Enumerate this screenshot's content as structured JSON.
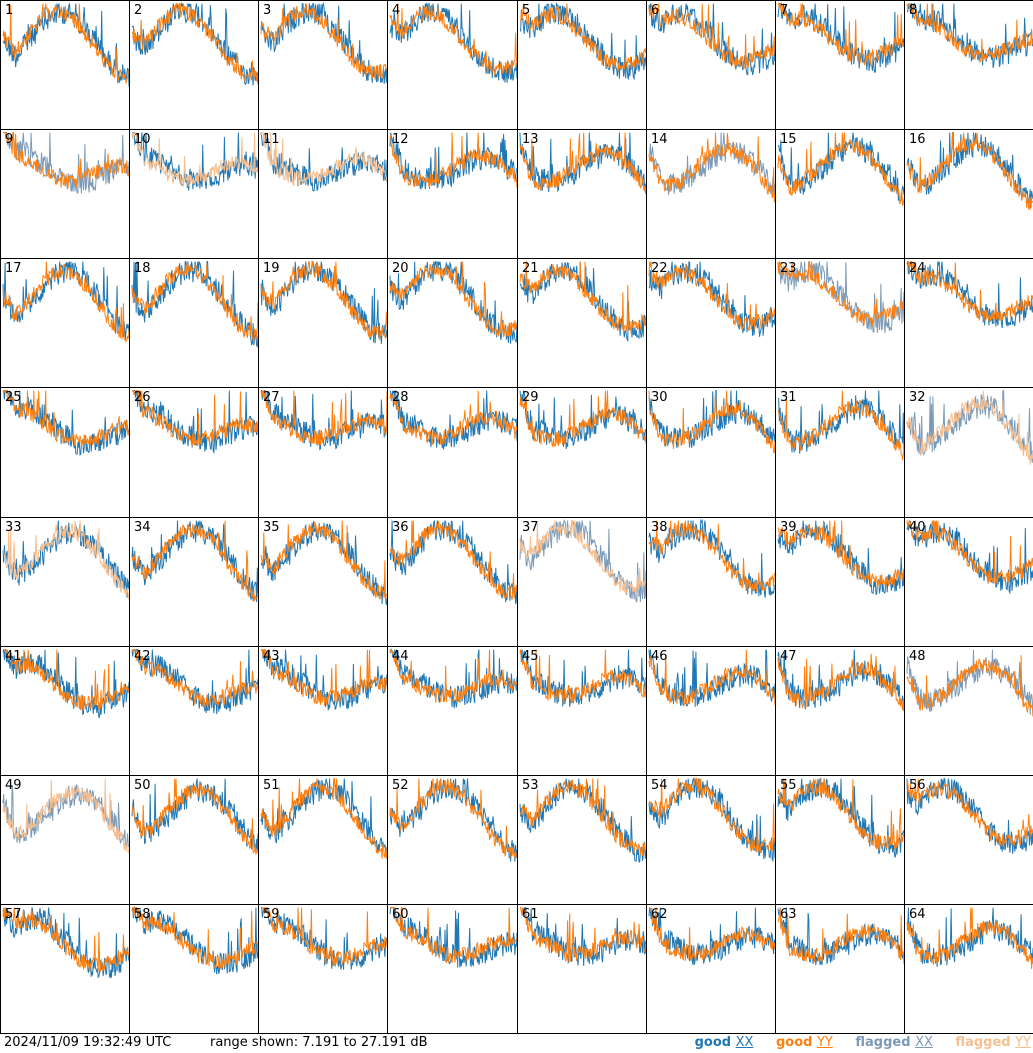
{
  "footer": {
    "timestamp": "2024/11/09 19:32:49 UTC",
    "range": "range shown: 7.191 to 27.191 dB"
  },
  "legend": [
    {
      "key": "good",
      "pol": "XX",
      "color": "#1f77b4"
    },
    {
      "key": "good",
      "pol": "YY",
      "color": "#ff7f0e"
    },
    {
      "key": "flagged",
      "pol": "XX",
      "color": "#7a9ab8"
    },
    {
      "key": "flagged",
      "pol": "YY",
      "color": "#f7be8e"
    }
  ],
  "chart_data": {
    "type": "line",
    "rows": 8,
    "cols": 8,
    "ylim": [
      7.191,
      27.191
    ],
    "units": "dB",
    "tiles": [
      {
        "label": "1",
        "xx": "good",
        "yy": "good"
      },
      {
        "label": "2",
        "xx": "good",
        "yy": "good"
      },
      {
        "label": "3",
        "xx": "good",
        "yy": "good"
      },
      {
        "label": "4",
        "xx": "good",
        "yy": "good"
      },
      {
        "label": "5",
        "xx": "good",
        "yy": "good"
      },
      {
        "label": "6",
        "xx": "good",
        "yy": "good"
      },
      {
        "label": "7",
        "xx": "good",
        "yy": "good"
      },
      {
        "label": "8",
        "xx": "good",
        "yy": "good"
      },
      {
        "label": "9",
        "xx": "flagged",
        "yy": "good"
      },
      {
        "label": "10",
        "xx": "good",
        "yy": "flagged"
      },
      {
        "label": "11",
        "xx": "good",
        "yy": "flagged"
      },
      {
        "label": "12",
        "xx": "good",
        "yy": "good"
      },
      {
        "label": "13",
        "xx": "good",
        "yy": "good"
      },
      {
        "label": "14",
        "xx": "flagged",
        "yy": "good"
      },
      {
        "label": "15",
        "xx": "good",
        "yy": "good"
      },
      {
        "label": "16",
        "xx": "good",
        "yy": "good"
      },
      {
        "label": "17",
        "xx": "good",
        "yy": "good"
      },
      {
        "label": "18",
        "xx": "good",
        "yy": "good"
      },
      {
        "label": "19",
        "xx": "good",
        "yy": "good"
      },
      {
        "label": "20",
        "xx": "good",
        "yy": "good"
      },
      {
        "label": "21",
        "xx": "good",
        "yy": "good"
      },
      {
        "label": "22",
        "xx": "good",
        "yy": "good"
      },
      {
        "label": "23",
        "xx": "flagged",
        "yy": "good"
      },
      {
        "label": "24",
        "xx": "good",
        "yy": "good"
      },
      {
        "label": "25",
        "xx": "good",
        "yy": "good"
      },
      {
        "label": "26",
        "xx": "good",
        "yy": "good"
      },
      {
        "label": "27",
        "xx": "good",
        "yy": "good"
      },
      {
        "label": "28",
        "xx": "good",
        "yy": "good"
      },
      {
        "label": "29",
        "xx": "good",
        "yy": "good"
      },
      {
        "label": "30",
        "xx": "good",
        "yy": "good"
      },
      {
        "label": "31",
        "xx": "good",
        "yy": "good"
      },
      {
        "label": "32",
        "xx": "flagged",
        "yy": "flagged"
      },
      {
        "label": "33",
        "xx": "good",
        "yy": "flagged"
      },
      {
        "label": "34",
        "xx": "good",
        "yy": "good"
      },
      {
        "label": "35",
        "xx": "good",
        "yy": "good"
      },
      {
        "label": "36",
        "xx": "good",
        "yy": "good"
      },
      {
        "label": "37",
        "xx": "flagged",
        "yy": "flagged"
      },
      {
        "label": "38",
        "xx": "good",
        "yy": "good"
      },
      {
        "label": "39",
        "xx": "good",
        "yy": "good"
      },
      {
        "label": "40",
        "xx": "good",
        "yy": "good"
      },
      {
        "label": "41",
        "xx": "good",
        "yy": "good"
      },
      {
        "label": "42",
        "xx": "good",
        "yy": "good"
      },
      {
        "label": "43",
        "xx": "good",
        "yy": "good"
      },
      {
        "label": "44",
        "xx": "good",
        "yy": "good"
      },
      {
        "label": "45",
        "xx": "good",
        "yy": "good"
      },
      {
        "label": "46",
        "xx": "good",
        "yy": "good"
      },
      {
        "label": "47",
        "xx": "good",
        "yy": "good"
      },
      {
        "label": "48",
        "xx": "flagged",
        "yy": "good"
      },
      {
        "label": "49",
        "xx": "flagged",
        "yy": "flagged"
      },
      {
        "label": "50",
        "xx": "good",
        "yy": "good"
      },
      {
        "label": "51",
        "xx": "good",
        "yy": "good"
      },
      {
        "label": "52",
        "xx": "good",
        "yy": "good"
      },
      {
        "label": "53",
        "xx": "good",
        "yy": "good"
      },
      {
        "label": "54",
        "xx": "good",
        "yy": "good"
      },
      {
        "label": "55",
        "xx": "good",
        "yy": "good"
      },
      {
        "label": "56",
        "xx": "good",
        "yy": "good"
      },
      {
        "label": "57",
        "xx": "good",
        "yy": "good"
      },
      {
        "label": "58",
        "xx": "good",
        "yy": "good"
      },
      {
        "label": "59",
        "xx": "good",
        "yy": "good"
      },
      {
        "label": "60",
        "xx": "good",
        "yy": "good"
      },
      {
        "label": "61",
        "xx": "good",
        "yy": "good"
      },
      {
        "label": "62",
        "xx": "good",
        "yy": "good"
      },
      {
        "label": "63",
        "xx": "good",
        "yy": "good"
      },
      {
        "label": "64",
        "xx": "good",
        "yy": "good"
      }
    ]
  }
}
